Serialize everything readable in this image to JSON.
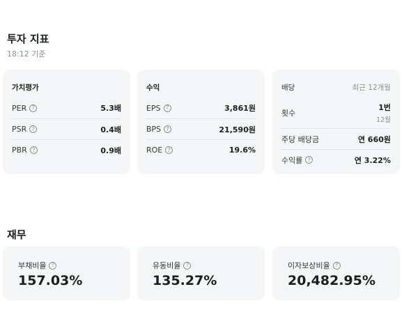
{
  "header": {
    "title": "투자 지표",
    "timestamp": "18:12 기준"
  },
  "valuation": {
    "title": "가치평가",
    "rows": [
      {
        "label": "PER",
        "value": "5.3배"
      },
      {
        "label": "PSR",
        "value": "0.4배"
      },
      {
        "label": "PBR",
        "value": "0.9배"
      }
    ]
  },
  "profit": {
    "title": "수익",
    "rows": [
      {
        "label": "EPS",
        "value": "3,861원"
      },
      {
        "label": "BPS",
        "value": "21,590원"
      },
      {
        "label": "ROE",
        "value": "19.6%"
      }
    ]
  },
  "dividend": {
    "title": "배당",
    "period": "최근 12개월",
    "count": {
      "label": "횟수",
      "value": "1번",
      "month": "12월"
    },
    "per_share": {
      "label": "주당 배당금",
      "value": "연 660원"
    },
    "yield": {
      "label": "수익률",
      "value": "연 3.22%"
    }
  },
  "finance": {
    "title": "재무",
    "cards": [
      {
        "label": "부채비율",
        "value": "157.03%"
      },
      {
        "label": "유동비율",
        "value": "135.27%"
      },
      {
        "label": "이자보상비율",
        "value": "20,482.95%"
      }
    ]
  },
  "icons": {
    "help": "help-circle-icon"
  }
}
